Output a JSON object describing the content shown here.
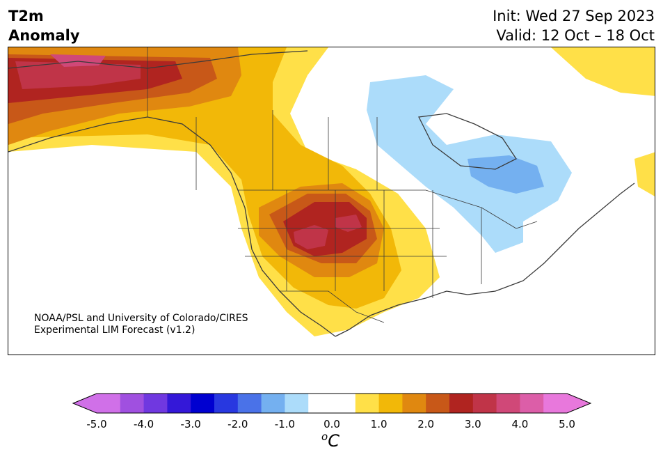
{
  "header": {
    "title_line1": "T2m",
    "title_line2": "Anomaly",
    "init_text": "Init: Wed 27 Sep 2023",
    "valid_text": "Valid: 12 Oct – 18 Oct"
  },
  "credit": {
    "line1": "NOAA/PSL and University of Colorado/CIRES",
    "line2": "Experimental LIM Forecast (v1.2)"
  },
  "colorbar": {
    "ticks": [
      "-5.0",
      "-4.0",
      "-3.0",
      "-2.0",
      "-1.0",
      "0.0",
      "1.0",
      "2.0",
      "3.0",
      "4.0",
      "5.0"
    ],
    "unit_super": "o",
    "unit_main": "C",
    "colors": [
      "#d070e8",
      "#a050e0",
      "#7038e0",
      "#3418d8",
      "#0000d0",
      "#2838e0",
      "#4a72e8",
      "#74b0f0",
      "#acdcfa",
      "#ffffff",
      "#ffffff",
      "#ffe048",
      "#f2b808",
      "#e08810",
      "#c85818",
      "#b02420",
      "#c03448",
      "#d04878",
      "#dc5ea8",
      "#e878dc"
    ]
  },
  "map": {
    "region": "North America",
    "field": "2m temperature anomaly"
  }
}
